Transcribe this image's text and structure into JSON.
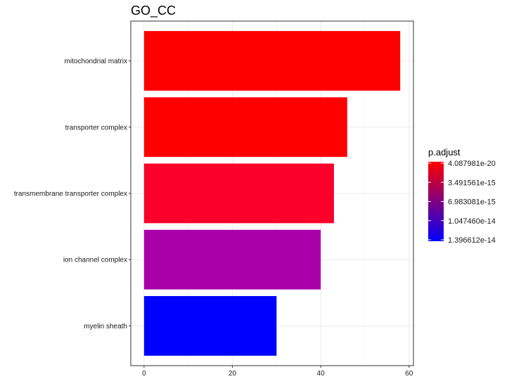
{
  "chart_data": {
    "type": "bar",
    "orientation": "horizontal",
    "title": "GO_CC",
    "xlabel": "",
    "ylabel": "",
    "categories": [
      "mitochondrial matrix",
      "transporter complex",
      "transmembrane transporter complex",
      "ion channel complex",
      "myelin sheath"
    ],
    "values": [
      58,
      46,
      43,
      40,
      30
    ],
    "colors": [
      "#ff0000",
      "#ff0000",
      "#fa002b",
      "#aa00aa",
      "#0000ff"
    ],
    "xlim": [
      -3,
      61
    ],
    "xticks": [
      0,
      20,
      40,
      60
    ],
    "grid": true,
    "legend": {
      "title": "p.adjust",
      "position": "right",
      "labels": [
        "4.087981e-20",
        "3.491561e-15",
        "6.983081e-15",
        "1.047460e-14",
        "1.396612e-14"
      ],
      "color_low": "#ff0000",
      "color_high": "#0000ff"
    }
  }
}
